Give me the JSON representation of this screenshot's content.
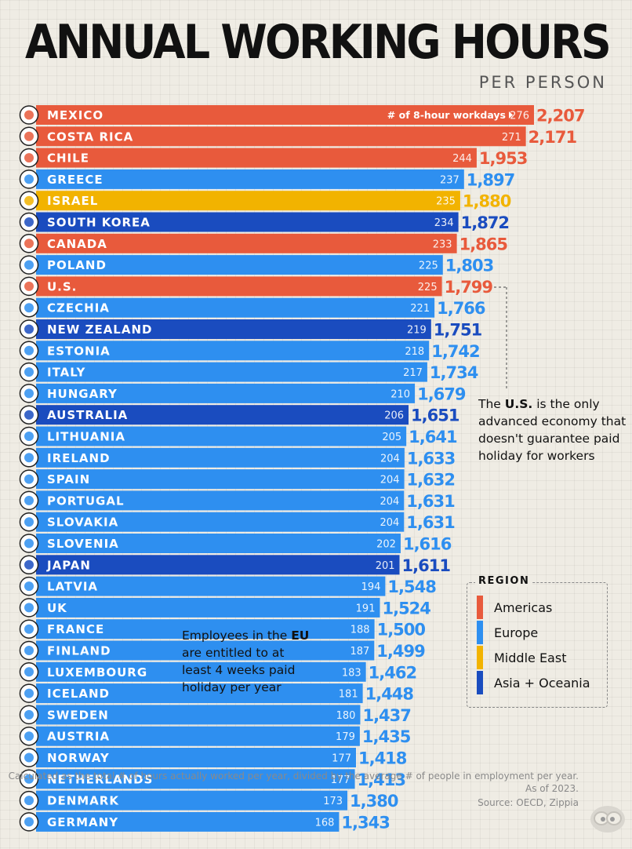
{
  "header": {
    "title": "ANNUAL WORKING HOURS",
    "subtitle": "PER PERSON"
  },
  "colors": {
    "Americas": "#e85a3c",
    "Europe": "#2e8ff0",
    "Middle East": "#f2b300",
    "Asia + Oceania": "#1a4cbf"
  },
  "chart_data": {
    "type": "bar",
    "orientation": "horizontal",
    "title": "ANNUAL WORKING HOURS",
    "subtitle": "PER PERSON",
    "workdays_label": "# of 8-hour workdays",
    "categories": [
      "MEXICO",
      "COSTA RICA",
      "CHILE",
      "GREECE",
      "ISRAEL",
      "SOUTH KOREA",
      "CANADA",
      "POLAND",
      "U.S.",
      "CZECHIA",
      "NEW ZEALAND",
      "ESTONIA",
      "ITALY",
      "HUNGARY",
      "AUSTRALIA",
      "LITHUANIA",
      "IRELAND",
      "SPAIN",
      "PORTUGAL",
      "SLOVAKIA",
      "SLOVENIA",
      "JAPAN",
      "LATVIA",
      "UK",
      "FRANCE",
      "FINLAND",
      "LUXEMBOURG",
      "ICELAND",
      "SWEDEN",
      "AUSTRIA",
      "NORWAY",
      "NETHERLANDS",
      "DENMARK",
      "GERMANY"
    ],
    "values": [
      2207,
      2171,
      1953,
      1897,
      1880,
      1872,
      1865,
      1803,
      1799,
      1766,
      1751,
      1742,
      1734,
      1679,
      1651,
      1641,
      1633,
      1632,
      1631,
      1631,
      1616,
      1611,
      1548,
      1524,
      1500,
      1499,
      1462,
      1448,
      1437,
      1435,
      1418,
      1413,
      1380,
      1343
    ],
    "value_labels": [
      "2,207",
      "2,171",
      "1,953",
      "1,897",
      "1,880",
      "1,872",
      "1,865",
      "1,803",
      "1,799",
      "1,766",
      "1,751",
      "1,742",
      "1,734",
      "1,679",
      "1,651",
      "1,641",
      "1,633",
      "1,632",
      "1,631",
      "1,631",
      "1,616",
      "1,611",
      "1,548",
      "1,524",
      "1,500",
      "1,499",
      "1,462",
      "1,448",
      "1,437",
      "1,435",
      "1,418",
      "1,413",
      "1,380",
      "1,343"
    ],
    "workdays": [
      276,
      271,
      244,
      237,
      235,
      234,
      233,
      225,
      225,
      221,
      219,
      218,
      217,
      210,
      206,
      205,
      204,
      204,
      204,
      204,
      202,
      201,
      194,
      191,
      188,
      187,
      183,
      181,
      180,
      179,
      177,
      177,
      173,
      168
    ],
    "regions": [
      "Americas",
      "Americas",
      "Americas",
      "Europe",
      "Middle East",
      "Asia + Oceania",
      "Americas",
      "Europe",
      "Americas",
      "Europe",
      "Asia + Oceania",
      "Europe",
      "Europe",
      "Europe",
      "Asia + Oceania",
      "Europe",
      "Europe",
      "Europe",
      "Europe",
      "Europe",
      "Europe",
      "Asia + Oceania",
      "Europe",
      "Europe",
      "Europe",
      "Europe",
      "Europe",
      "Europe",
      "Europe",
      "Europe",
      "Europe",
      "Europe",
      "Europe",
      "Europe"
    ],
    "legend": {
      "title": "REGION",
      "items": [
        "Americas",
        "Europe",
        "Middle East",
        "Asia + Oceania"
      ]
    }
  },
  "annotations": {
    "us_note": {
      "prefix": "The ",
      "bold": "U.S.",
      "suffix": " is the only advanced economy that doesn't guarantee paid holiday for workers"
    },
    "eu_note": {
      "prefix": "Employees in the ",
      "bold": "EU",
      "suffix": " are entitled to at least 4 weeks paid holiday per year"
    }
  },
  "footer": {
    "method_note": "Calculated as the total # of hours actually worked per year, divided by the average # of people in employment per year. As of 2023.",
    "source": "Source: OECD, Zippia"
  }
}
